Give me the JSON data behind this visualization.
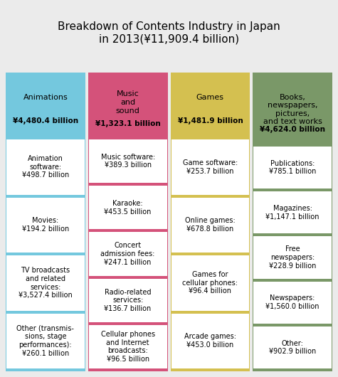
{
  "title": "Breakdown of Contents Industry in Japan\nin 2013(¥11,909.4 billion)",
  "bg_color": "#ebebeb",
  "columns": [
    {
      "header": "Animations",
      "header_value": "¥4,480.4 billion",
      "header_color": "#74c8de",
      "items": [
        "Animation\nsoftware:\n¥498.7 billion",
        "Movies:\n¥194.2 billion",
        "TV broadcasts\nand related\nservices:\n¥3,527.4 billion",
        "Other (transmis-\nsions, stage\nperformances):\n¥260.1 billion"
      ]
    },
    {
      "header": "Music\nand\nsound",
      "header_value": "¥1,323.1 billion",
      "header_color": "#d4527a",
      "items": [
        "Music software:\n¥389.3 billion",
        "Karaoke:\n¥453.5 billion",
        "Concert\nadmission fees:\n¥247.1 billion",
        "Radio-related\nservices:\n¥136.7 billion",
        "Cellular phones\nand Internet\nbroadcasts:\n¥96.5 billion"
      ]
    },
    {
      "header": "Games",
      "header_value": "¥1,481.9 billion",
      "header_color": "#d4c050",
      "items": [
        "Game software:\n¥253.7 billion",
        "Online games:\n¥678.8 billion",
        "Games for\ncellular phones:\n¥96.4 billion",
        "Arcade games:\n¥453.0 billion"
      ]
    },
    {
      "header": "Books,\nnewspapers,\npictures,\nand text works",
      "header_value": "¥4,624.0 billion",
      "header_color": "#7a9868",
      "items": [
        "Publications:\n¥785.1 billion",
        "Magazines:\n¥1,147.1 billion",
        "Free\nnewspapers:\n¥228.9 billion",
        "Newspapers:\n¥1,560.0 billion",
        "Other:\n¥902.9 billion"
      ]
    }
  ],
  "title_fontsize": 11,
  "header_fontsize": 8,
  "value_fontsize": 7.5,
  "item_fontsize": 7
}
